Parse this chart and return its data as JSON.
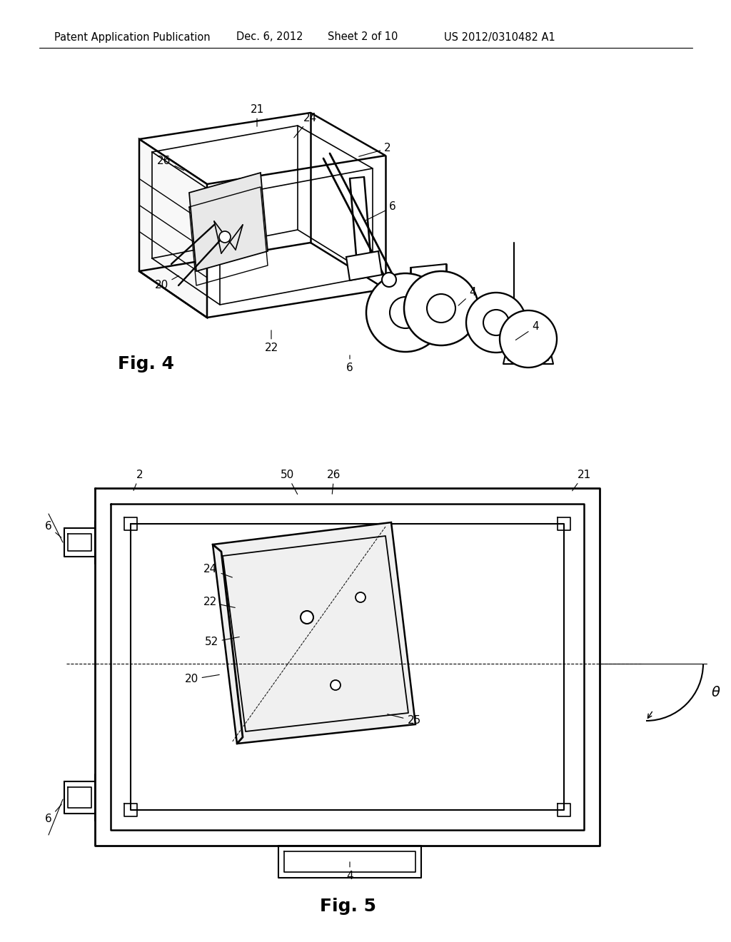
{
  "bg_color": "#ffffff",
  "header_text": "Patent Application Publication",
  "header_date": "Dec. 6, 2012",
  "header_sheet": "Sheet 2 of 10",
  "header_patent": "US 2012/0310482 A1",
  "fig4_label": "Fig. 4",
  "fig5_label": "Fig. 5",
  "line_color": "#000000",
  "line_width": 1.5,
  "font_size_header": 10.5,
  "font_size_fig_label": 18,
  "font_size_ref": 11
}
